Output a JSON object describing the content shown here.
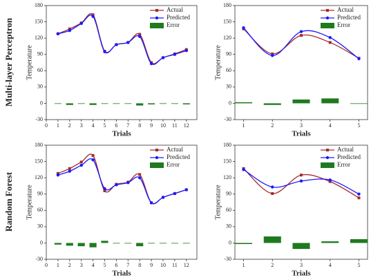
{
  "row_labels": [
    "Multi-layer Perceptron",
    "Random Forest"
  ],
  "chart_data": [
    {
      "type": "line",
      "xlabel": "Trials",
      "ylabel": "Temperature",
      "legend": "upper right",
      "x": [
        1,
        2,
        3,
        4,
        5,
        6,
        7,
        8,
        9,
        10,
        11,
        12
      ],
      "xlim": [
        0,
        12.9
      ],
      "xticks": [
        0,
        1,
        2,
        3,
        4,
        5,
        6,
        7,
        8,
        9,
        10,
        11,
        12
      ],
      "ylim": [
        -30,
        180
      ],
      "yticks": [
        -30,
        0,
        30,
        60,
        90,
        120,
        150,
        180
      ],
      "series": [
        {
          "name": "Actual",
          "color": "#a52a2a",
          "marker": "square",
          "values": [
            128,
            137,
            148,
            163,
            96,
            108,
            112,
            127,
            75,
            84,
            91,
            99
          ]
        },
        {
          "name": "Predicted",
          "color": "#1a1aff",
          "marker": "circle",
          "values": [
            128,
            134,
            147,
            160,
            95,
            108,
            112,
            123,
            73,
            84,
            90,
            97
          ]
        },
        {
          "name": "Error",
          "color": "#1f7a1f",
          "type": "bar",
          "values": [
            0,
            -3,
            -1,
            -3,
            -1,
            0,
            0,
            -4,
            -2,
            0,
            -1,
            -2
          ]
        }
      ]
    },
    {
      "type": "line",
      "xlabel": "Trials",
      "ylabel": "Temperature",
      "legend": "upper right",
      "x": [
        1,
        2,
        3,
        4,
        5
      ],
      "xlim": [
        0.7,
        5.3
      ],
      "xticks": [
        1,
        2,
        3,
        4,
        5
      ],
      "ylim": [
        -30,
        180
      ],
      "yticks": [
        -30,
        0,
        30,
        60,
        90,
        120,
        150,
        180
      ],
      "series": [
        {
          "name": "Actual",
          "color": "#a52a2a",
          "marker": "square",
          "values": [
            137,
            91,
            125,
            112,
            83
          ]
        },
        {
          "name": "Predicted",
          "color": "#1a1aff",
          "marker": "circle",
          "values": [
            139,
            88,
            132,
            121,
            82
          ]
        },
        {
          "name": "Error",
          "color": "#1f7a1f",
          "type": "bar",
          "values": [
            2,
            -3,
            7,
            9,
            -1
          ]
        }
      ]
    },
    {
      "type": "line",
      "xlabel": "Trials",
      "ylabel": "Temperature",
      "legend": "upper right",
      "x": [
        1,
        2,
        3,
        4,
        5,
        6,
        7,
        8,
        9,
        10,
        11,
        12
      ],
      "xlim": [
        0,
        12.9
      ],
      "xticks": [
        0,
        1,
        2,
        3,
        4,
        5,
        6,
        7,
        8,
        9,
        10,
        11,
        12
      ],
      "ylim": [
        -30,
        180
      ],
      "yticks": [
        -30,
        0,
        30,
        60,
        90,
        120,
        150,
        180
      ],
      "series": [
        {
          "name": "Actual",
          "color": "#a52a2a",
          "marker": "square",
          "values": [
            128,
            137,
            149,
            161,
            96,
            108,
            112,
            126,
            74,
            84,
            91,
            98
          ]
        },
        {
          "name": "Predicted",
          "color": "#1a1aff",
          "marker": "circle",
          "values": [
            125,
            132,
            143,
            153,
            100,
            107,
            111,
            120,
            74,
            84,
            91,
            98
          ]
        },
        {
          "name": "Error",
          "color": "#1f7a1f",
          "type": "bar",
          "values": [
            -3,
            -5,
            -6,
            -8,
            4,
            -1,
            -1,
            -6,
            0,
            0,
            0,
            0
          ]
        }
      ]
    },
    {
      "type": "line",
      "xlabel": "Trials",
      "ylabel": "Temperature",
      "legend": "upper right",
      "x": [
        1,
        2,
        3,
        4,
        5
      ],
      "xlim": [
        0.7,
        5.3
      ],
      "xticks": [
        1,
        2,
        3,
        4,
        5
      ],
      "ylim": [
        -30,
        180
      ],
      "yticks": [
        -30,
        0,
        30,
        60,
        90,
        120,
        150,
        180
      ],
      "series": [
        {
          "name": "Actual",
          "color": "#a52a2a",
          "marker": "square",
          "values": [
            137,
            91,
            125,
            113,
            83
          ]
        },
        {
          "name": "Predicted",
          "color": "#1a1aff",
          "marker": "circle",
          "values": [
            135,
            103,
            114,
            116,
            90
          ]
        },
        {
          "name": "Error",
          "color": "#1f7a1f",
          "type": "bar",
          "values": [
            -2,
            12,
            -11,
            3,
            7
          ]
        }
      ]
    }
  ]
}
